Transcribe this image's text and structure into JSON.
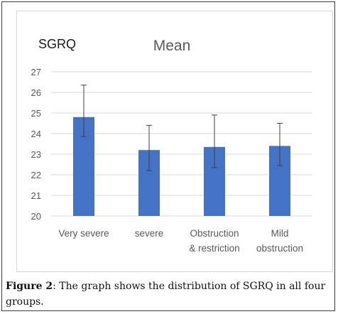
{
  "chart_data": {
    "type": "bar",
    "ylabel": "SGRQ",
    "title": "Mean",
    "categories": [
      [
        "Very severe"
      ],
      [
        "severe"
      ],
      [
        "Obstruction",
        "& restriction"
      ],
      [
        "Mild",
        "obstruction"
      ]
    ],
    "values": [
      24.8,
      23.2,
      23.35,
      23.4
    ],
    "error_high": [
      26.35,
      24.4,
      24.9,
      24.5
    ],
    "error_low": [
      23.85,
      22.2,
      22.35,
      22.45
    ],
    "ylim": [
      20,
      27
    ],
    "yticks": [
      20,
      21,
      22,
      23,
      24,
      25,
      26,
      27
    ],
    "grid": true,
    "bar_color": "#4472C4"
  },
  "caption": {
    "label": "Figure 2",
    "text": ": The graph shows the distribution of SGRQ in all four groups."
  }
}
